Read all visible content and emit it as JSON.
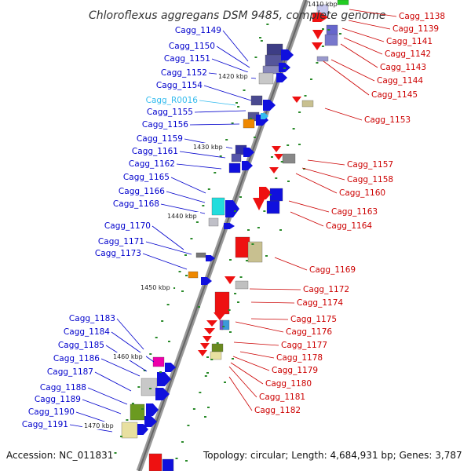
{
  "title": "Chloroflexus aggregans DSM 9485, complete genome",
  "top_tick": "1410 kbp",
  "accession_label": "Accession: NC_011831",
  "summary_label": "Topology: circular; Length: 4,684,931 bp; Genes: 3,787",
  "colors": {
    "left_label": "#0000cc",
    "right_label": "#cc0000",
    "rna_label": "#33bbee",
    "axis": "#888888"
  },
  "kbp_ticks": [
    "1420 kbp",
    "1430 kbp",
    "1440 kbp",
    "1450 kbp",
    "1460 kbp",
    "1470 kbp"
  ],
  "left_genes": [
    "Cagg_1149",
    "Cagg_1150",
    "Cagg_1151",
    "Cagg_1152",
    "Cagg_1154",
    "Cagg_R0016",
    "Cagg_1155",
    "Cagg_1156",
    "Cagg_1159",
    "Cagg_1161",
    "Cagg_1162",
    "Cagg_1165",
    "Cagg_1166",
    "Cagg_1168",
    "Cagg_1170",
    "Cagg_1171",
    "Cagg_1173",
    "Cagg_1183",
    "Cagg_1184",
    "Cagg_1185",
    "Cagg_1186",
    "Cagg_1187",
    "Cagg_1188",
    "Cagg_1189",
    "Cagg_1190",
    "Cagg_1191"
  ],
  "right_genes": [
    "Cagg_1138",
    "Cagg_1139",
    "Cagg_1141",
    "Cagg_1142",
    "Cagg_1143",
    "Cagg_1144",
    "Cagg_1145",
    "Cagg_1153",
    "Cagg_1157",
    "Cagg_1158",
    "Cagg_1160",
    "Cagg_1163",
    "Cagg_1164",
    "Cagg_1169",
    "Cagg_1172",
    "Cagg_1174",
    "Cagg_1175",
    "Cagg_1176",
    "Cagg_1177",
    "Cagg_1178",
    "Cagg_1179",
    "Cagg_1180",
    "Cagg_1181",
    "Cagg_1182"
  ]
}
